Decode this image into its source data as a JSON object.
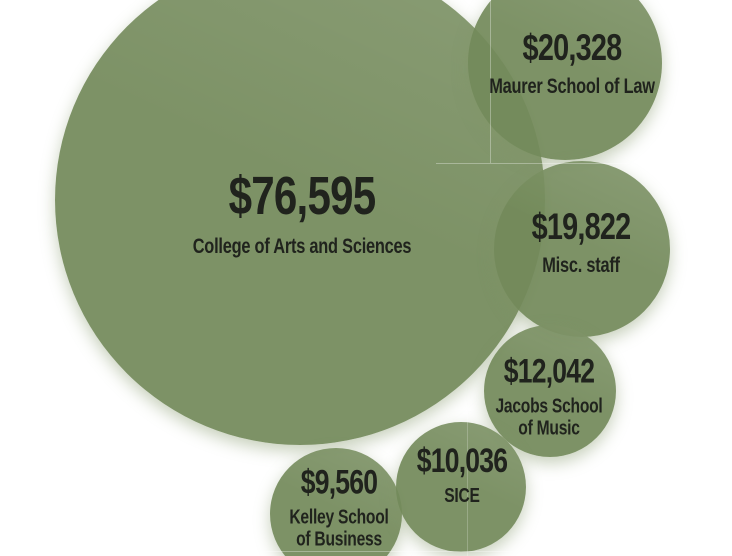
{
  "chart_data": {
    "type": "bubble",
    "title": "",
    "unit": "USD",
    "legend": "none",
    "background": "#ffffff",
    "bubbles": [
      {
        "label": "College of Arts and Sciences",
        "value": 76595,
        "value_display": "$76,595",
        "label_lines": [
          "College of Arts and Sciences"
        ]
      },
      {
        "label": "Maurer School of Law",
        "value": 20328,
        "value_display": "$20,328",
        "label_lines": [
          "Maurer School of Law"
        ]
      },
      {
        "label": "Misc. staff",
        "value": 19822,
        "value_display": "$19,822",
        "label_lines": [
          "Misc. staff"
        ]
      },
      {
        "label": "Jacobs School of Music",
        "value": 12042,
        "value_display": "$12,042",
        "label_lines": [
          "Jacobs School",
          "of Music"
        ]
      },
      {
        "label": "SICE",
        "value": 10036,
        "value_display": "$10,036",
        "label_lines": [
          "SICE"
        ]
      },
      {
        "label": "Kelley School of Business",
        "value": 9560,
        "value_display": "$9,560",
        "label_lines": [
          "Kelley School",
          "of Business"
        ]
      }
    ],
    "colors": {
      "bubble_fill": "#738A5A",
      "bubble_fill_rgba": "rgba(115,138,90,0.93)",
      "text": "#20231d",
      "background": "#ffffff"
    }
  }
}
